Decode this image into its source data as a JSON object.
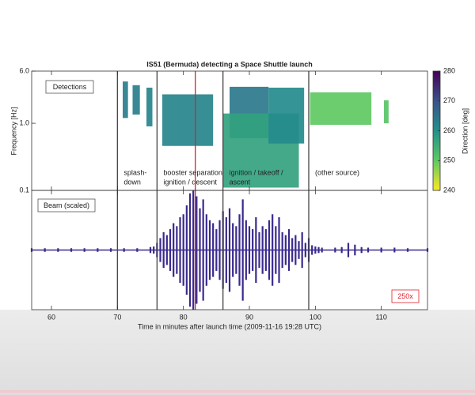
{
  "chart_data": {
    "type": "spectrogram",
    "title": "IS51 (Bermuda) detecting a Space Shuttle launch",
    "xlabel": "Time in minutes after launch time (2009-11-16 19:28 UTC)",
    "ylabel": "Frequency [Hz]",
    "xlim": [
      57,
      117
    ],
    "xticks": [
      60,
      70,
      80,
      90,
      100,
      110
    ],
    "ylim": [
      0.1,
      6
    ],
    "yscale": "log",
    "yticks": [
      0.1,
      {
        "value": 1,
        "label": "1.0"
      },
      {
        "value": 6,
        "label": "6.0"
      }
    ],
    "detections_label": "Detections",
    "detections": [
      {
        "x": [
          70.8,
          71.6
        ],
        "frequency": [
          1.2,
          4.2
        ],
        "direction": 263
      },
      {
        "x": [
          72.3,
          73.4
        ],
        "frequency": [
          1.35,
          3.7
        ],
        "direction": 263
      },
      {
        "x": [
          74.4,
          75.3
        ],
        "frequency": [
          0.9,
          3.4
        ],
        "direction": 262
      },
      {
        "x": [
          76.8,
          84.5
        ],
        "frequency": [
          0.46,
          2.7
        ],
        "direction": 262
      },
      {
        "x": [
          87.0,
          92.9
        ],
        "frequency": [
          0.6,
          3.5
        ],
        "direction": 264
      },
      {
        "x": [
          86.0,
          97.5
        ],
        "frequency": [
          0.11,
          1.4
        ],
        "direction": 257
      },
      {
        "x": [
          92.9,
          98.3
        ],
        "frequency": [
          0.5,
          3.4
        ],
        "direction": 261
      },
      {
        "x": [
          99.2,
          108.5
        ],
        "frequency": [
          0.95,
          2.9
        ],
        "direction": 250
      },
      {
        "x": [
          110.4,
          111.1
        ],
        "frequency": [
          1.0,
          2.2
        ],
        "direction": 251
      }
    ],
    "events": [
      {
        "x": 70,
        "color": "#444444",
        "label": [
          "splash-",
          "down"
        ]
      },
      {
        "x": 76,
        "color": "#444444",
        "label": [
          "booster separation",
          "ignition / descent"
        ]
      },
      {
        "x": 81.8,
        "color": "#e0202a"
      },
      {
        "x": 86,
        "color": "#444444",
        "label": [
          "ignition / takeoff /",
          "ascent"
        ]
      },
      {
        "x": 99,
        "color": "#444444",
        "label": [
          "(other source)"
        ]
      }
    ],
    "colorbar": {
      "label": "Direction [deg]",
      "lim": [
        240,
        280
      ],
      "ticks": [
        240,
        250,
        260,
        270,
        280
      ],
      "colors": [
        "#fde725",
        "#5ec962",
        "#21918c",
        "#3b528b",
        "#440154"
      ]
    },
    "beam": {
      "label": "Beam (scaled)",
      "scale_label": "250x",
      "color": "#3a2a8e",
      "x": [
        57,
        59,
        61,
        63,
        65,
        67,
        69,
        71,
        73,
        75,
        75.5,
        76,
        76.5,
        77,
        77.5,
        78,
        78.5,
        79,
        79.5,
        80,
        80.5,
        81,
        81.5,
        82,
        82.5,
        83,
        83.5,
        84,
        84.5,
        85,
        85.5,
        86,
        86.5,
        87,
        87.5,
        88,
        88.5,
        89,
        89.5,
        90,
        90.5,
        91,
        91.5,
        92,
        92.5,
        93,
        93.5,
        94,
        94.5,
        95,
        95.5,
        96,
        96.5,
        97,
        97.5,
        98,
        98.5,
        99,
        99.5,
        100,
        100.5,
        101,
        103,
        104,
        105,
        106,
        107,
        108,
        110,
        112,
        114,
        117
      ],
      "amplitude": [
        0.03,
        0.03,
        0.03,
        0.03,
        0.03,
        0.03,
        0.03,
        0.03,
        0.03,
        0.05,
        0.06,
        0.12,
        0.2,
        0.3,
        0.25,
        0.35,
        0.45,
        0.4,
        0.55,
        0.6,
        0.75,
        0.95,
        1.0,
        0.9,
        0.7,
        0.85,
        0.6,
        0.5,
        0.45,
        0.35,
        0.5,
        0.65,
        0.55,
        0.7,
        0.45,
        0.4,
        0.6,
        0.85,
        0.5,
        0.4,
        0.35,
        0.55,
        0.3,
        0.4,
        0.35,
        0.5,
        0.6,
        0.4,
        0.55,
        0.3,
        0.25,
        0.35,
        0.2,
        0.25,
        0.15,
        0.3,
        0.12,
        0.2,
        0.08,
        0.06,
        0.05,
        0.04,
        0.04,
        0.05,
        0.12,
        0.09,
        0.05,
        0.04,
        0.04,
        0.04,
        0.03,
        0.03
      ]
    }
  }
}
